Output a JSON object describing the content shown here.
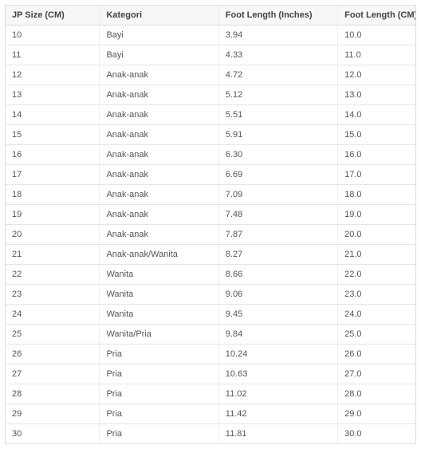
{
  "table": {
    "type": "table",
    "columns": [
      {
        "label": "JP Size (CM)",
        "width_pct": 23,
        "align": "left"
      },
      {
        "label": "Kategori",
        "width_pct": 29,
        "align": "left"
      },
      {
        "label": "Foot Length (Inches)",
        "width_pct": 29,
        "align": "left"
      },
      {
        "label": "Foot Length (CM)",
        "width_pct": 19,
        "align": "left"
      }
    ],
    "rows": [
      [
        "10",
        "Bayi",
        "3.94",
        "10.0"
      ],
      [
        "11",
        "Bayi",
        "4.33",
        "11.0"
      ],
      [
        "12",
        "Anak-anak",
        "4.72",
        "12.0"
      ],
      [
        "13",
        "Anak-anak",
        "5.12",
        "13.0"
      ],
      [
        "14",
        "Anak-anak",
        "5.51",
        "14.0"
      ],
      [
        "15",
        "Anak-anak",
        "5.91",
        "15.0"
      ],
      [
        "16",
        "Anak-anak",
        "6.30",
        "16.0"
      ],
      [
        "17",
        "Anak-anak",
        "6.69",
        "17.0"
      ],
      [
        "18",
        "Anak-anak",
        "7.09",
        "18.0"
      ],
      [
        "19",
        "Anak-anak",
        "7.48",
        "19.0"
      ],
      [
        "20",
        "Anak-anak",
        "7.87",
        "20.0"
      ],
      [
        "21",
        "Anak-anak/Wanita",
        "8.27",
        "21.0"
      ],
      [
        "22",
        "Wanita",
        "8.66",
        "22.0"
      ],
      [
        "23",
        "Wanita",
        "9.06",
        "23.0"
      ],
      [
        "24",
        "Wanita",
        "9.45",
        "24.0"
      ],
      [
        "25",
        "Wanita/Pria",
        "9.84",
        "25.0"
      ],
      [
        "26",
        "Pria",
        "10.24",
        "26.0"
      ],
      [
        "27",
        "Pria",
        "10.63",
        "27.0"
      ],
      [
        "28",
        "Pria",
        "11.02",
        "28.0"
      ],
      [
        "29",
        "Pria",
        "11.42",
        "29.0"
      ],
      [
        "30",
        "Pria",
        "11.81",
        "30.0"
      ]
    ],
    "style": {
      "header_bg": "#f7f7f7",
      "border_color": "#ddd",
      "row_border_color": "#e5e5e5",
      "font_size_pt": 8,
      "text_color": "#555",
      "header_text_color": "#444"
    }
  }
}
